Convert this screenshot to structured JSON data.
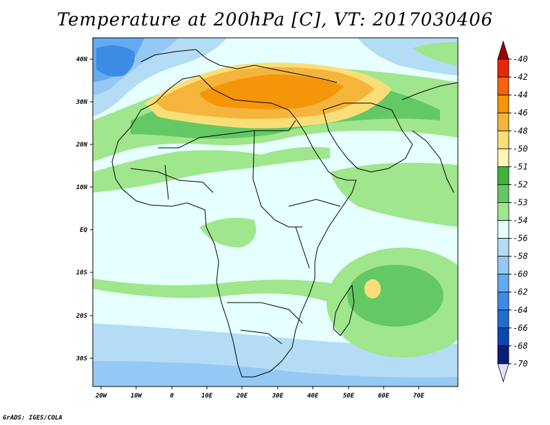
{
  "title": "Temperature at 200hPa [C], VT: 2017030406",
  "credit": "GrADS: IGES/COLA",
  "map": {
    "lon_labels": [
      "20W",
      "10W",
      "0",
      "10E",
      "20E",
      "30E",
      "40E",
      "50E",
      "60E",
      "70E"
    ],
    "lat_labels": [
      "40N",
      "30N",
      "20N",
      "10N",
      "EQ",
      "10S",
      "20S",
      "30S"
    ]
  },
  "colorbar": {
    "levels": [
      "-40",
      "-42",
      "-44",
      "-46",
      "-48",
      "-50",
      "-51",
      "-52",
      "-53",
      "-54",
      "-56",
      "-58",
      "-60",
      "-62",
      "-64",
      "-66",
      "-68",
      "-70"
    ],
    "colors": [
      "#a00000",
      "#e6280a",
      "#f5640a",
      "#f5960a",
      "#f5b43c",
      "#fade78",
      "#fff5b4",
      "#3cb43c",
      "#64c864",
      "#a0e68c",
      "#e6ffff",
      "#b4dcf5",
      "#96c8f5",
      "#64aaf0",
      "#3c8ce6",
      "#1e6ed2",
      "#0a46b4",
      "#0a1e78",
      "#e1e1ff"
    ]
  }
}
